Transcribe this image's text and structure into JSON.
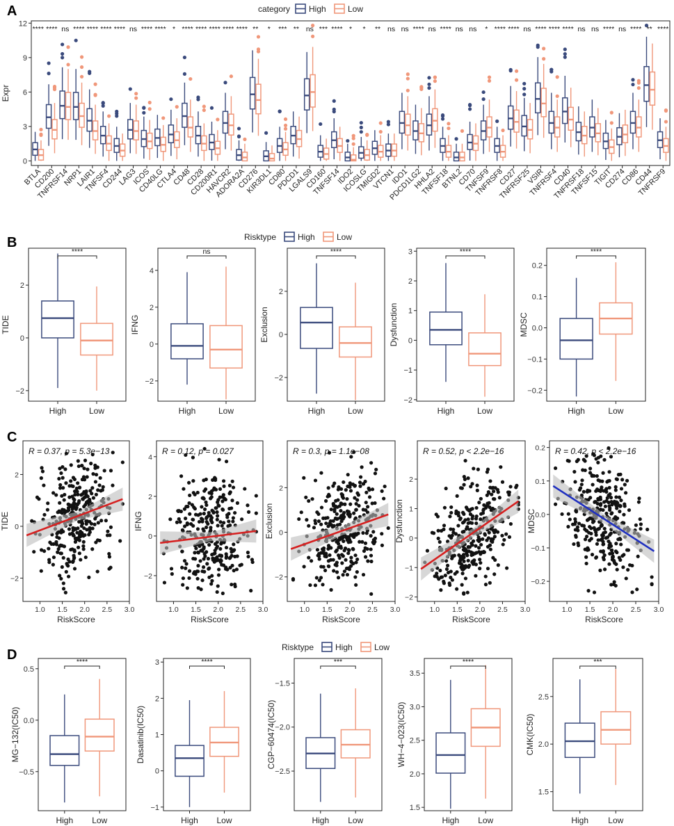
{
  "colors": {
    "high": "#3a4a7c",
    "low": "#f0977a",
    "regR": "#d62020",
    "regB": "#1f2fc0",
    "point": "#111111",
    "band": "#bdbdbd"
  },
  "panel_letters": [
    "A",
    "B",
    "C",
    "D"
  ],
  "panelA": {
    "legend_title": "category",
    "legend_high": "High",
    "legend_low": "Low",
    "ylabel": "Expr",
    "ylim": [
      -0.4,
      12.2
    ],
    "yticks": [
      0,
      3,
      6,
      9,
      12
    ],
    "genes": [
      "BTLA",
      "CD200",
      "TNFRSF14",
      "NRP1",
      "LAIR1",
      "TNFSF4",
      "CD244",
      "LAG3",
      "ICOS",
      "CD40LG",
      "CTLA4",
      "CD48",
      "CD28",
      "CD200R1",
      "HAVCR2",
      "ADORA2A",
      "CD276",
      "KIR3DL1",
      "CD80",
      "PDCD1",
      "LGALS9",
      "CD160",
      "TNFSF14",
      "IDO2",
      "ICOSLG",
      "TMIGD2",
      "VTCN1",
      "IDO1",
      "PDCD1LG2",
      "HHLA2",
      "TNFSF18",
      "BTNL2",
      "CD70",
      "TNFSF9",
      "TNFRSF8",
      "CD27",
      "TNFRSF25",
      "VSIR",
      "TNFRSF4",
      "CD40",
      "TNFRSF18",
      "TNFSF15",
      "TIGIT",
      "CD274",
      "CD86",
      "CD44",
      "TNFRSF9"
    ],
    "significance": [
      "****",
      "****",
      "ns",
      "****",
      "****",
      "****",
      "****",
      "ns",
      "****",
      "****",
      "*",
      "****",
      "****",
      "****",
      "****",
      "****",
      "**",
      "*",
      "***",
      "**",
      "ns",
      "***",
      "****",
      "*",
      "*",
      "**",
      "ns",
      "ns",
      "****",
      "ns",
      "****",
      "ns",
      "ns",
      "*",
      "****",
      "****",
      "ns",
      "****",
      "****",
      "****",
      "ns",
      "ns",
      "****",
      "ns",
      "****",
      "**",
      "****"
    ],
    "medians_high": [
      1.0,
      3.8,
      4.8,
      4.7,
      3.5,
      2.2,
      1.3,
      2.7,
      1.9,
      2.0,
      2.3,
      3.9,
      2.2,
      1.6,
      3.3,
      0.5,
      5.8,
      0.4,
      1.3,
      2.2,
      5.7,
      0.8,
      1.8,
      0.3,
      0.7,
      1.1,
      0.9,
      3.3,
      2.6,
      3.1,
      1.3,
      0.3,
      1.6,
      2.6,
      1.3,
      3.7,
      3.0,
      5.4,
      3.3,
      4.3,
      2.5,
      2.9,
      1.7,
      2.1,
      3.3,
      6.6,
      1.8
    ],
    "medians_low": [
      0.5,
      2.7,
      4.7,
      3.9,
      2.6,
      1.5,
      0.9,
      2.6,
      1.7,
      1.4,
      1.8,
      2.9,
      1.5,
      1.1,
      3.1,
      0.3,
      5.3,
      0.2,
      1.0,
      1.9,
      6.0,
      0.6,
      1.3,
      0.1,
      0.5,
      0.8,
      0.9,
      3.1,
      2.4,
      3.5,
      0.8,
      0.3,
      1.5,
      2.9,
      0.8,
      3.4,
      2.7,
      5.0,
      2.9,
      3.6,
      2.2,
      2.4,
      1.2,
      2.3,
      2.9,
      6.2,
      1.3
    ]
  },
  "panelB": {
    "legend_title": "Risktype",
    "legend_high": "High",
    "legend_low": "Low",
    "subplots": [
      {
        "ylabel": "TIDE",
        "sig": "****",
        "ylim": [
          -2.4,
          3.4
        ],
        "yticks": [
          -2,
          0,
          2
        ],
        "high": {
          "min": -1.9,
          "q1": 0.0,
          "med": 0.75,
          "q3": 1.4,
          "max": 3.2
        },
        "low": {
          "min": -2.0,
          "q1": -0.65,
          "med": -0.1,
          "q3": 0.55,
          "max": 1.95
        }
      },
      {
        "ylabel": "IFNG",
        "sig": "ns",
        "ylim": [
          -3.1,
          5.2
        ],
        "yticks": [
          -2,
          0,
          2,
          4
        ],
        "high": {
          "min": -2.2,
          "q1": -0.8,
          "med": -0.1,
          "q3": 1.1,
          "max": 3.9
        },
        "low": {
          "min": -3.0,
          "q1": -1.3,
          "med": -0.3,
          "q3": 1.0,
          "max": 4.2
        }
      },
      {
        "ylabel": "Exclusion",
        "sig": "****",
        "ylim": [
          -3.1,
          4.0
        ],
        "yticks": [
          -2,
          0,
          2
        ],
        "high": {
          "min": -2.75,
          "q1": -0.65,
          "med": 0.55,
          "q3": 1.25,
          "max": 3.3
        },
        "low": {
          "min": -3.05,
          "q1": -1.05,
          "med": -0.4,
          "q3": 0.35,
          "max": 2.4
        }
      },
      {
        "ylabel": "Dysfunction",
        "sig": "****",
        "ylim": [
          -2.05,
          3.1
        ],
        "yticks": [
          -2,
          -1,
          0,
          1,
          2,
          3
        ],
        "high": {
          "min": -1.4,
          "q1": -0.15,
          "med": 0.35,
          "q3": 0.95,
          "max": 2.6
        },
        "low": {
          "min": -1.9,
          "q1": -0.85,
          "med": -0.45,
          "q3": 0.25,
          "max": 1.55
        }
      },
      {
        "ylabel": "MDSC",
        "sig": "****",
        "ylim": [
          -0.235,
          0.255
        ],
        "yticks": [
          -0.2,
          -0.1,
          0.0,
          0.1,
          0.2
        ],
        "ytick_labels": [
          "-0.2",
          "-0.1",
          "0.0",
          "0.1",
          "0.2"
        ],
        "high": {
          "min": -0.22,
          "q1": -0.1,
          "med": -0.04,
          "q3": 0.03,
          "max": 0.16
        },
        "low": {
          "min": -0.17,
          "q1": -0.02,
          "med": 0.03,
          "q3": 0.08,
          "max": 0.21
        }
      }
    ]
  },
  "panelC": {
    "xlabel": "RiskScore",
    "xlim": [
      0.62,
      3.0
    ],
    "xticks": [
      "1.0",
      "1.5",
      "2.0",
      "2.5",
      "3.0"
    ],
    "subplots": [
      {
        "ylabel": "TIDE",
        "annot_r": "R = 0.37",
        "annot_p": "p = 5.3e−13",
        "ylim": [
          -2.9,
          3.3
        ],
        "yticks": [
          -2,
          0,
          2
        ],
        "line": [
          [
            0.7,
            -0.35
          ],
          [
            2.85,
            1.05
          ]
        ],
        "color": "regR"
      },
      {
        "ylabel": "IFNG",
        "annot_r": "R = 0.12",
        "annot_p": "p = 0.027",
        "ylim": [
          -3.3,
          4.8
        ],
        "yticks": [
          -2,
          0,
          2,
          4
        ],
        "line": [
          [
            0.7,
            -0.35
          ],
          [
            2.85,
            0.25
          ]
        ],
        "color": "regR"
      },
      {
        "ylabel": "Exclusion",
        "annot_r": "R = 0.3",
        "annot_p": "p = 1.1e−08",
        "ylim": [
          -3.1,
          4.1
        ],
        "yticks": [
          -2,
          0,
          2
        ],
        "line": [
          [
            0.7,
            -0.75
          ],
          [
            2.85,
            0.8
          ]
        ],
        "color": "regR"
      },
      {
        "ylabel": "Dysfunction",
        "annot_r": "R = 0.52",
        "annot_p": "p < 2.2e−16",
        "ylim": [
          -2.15,
          3.3
        ],
        "yticks": [
          -2,
          -1,
          0,
          1,
          2
        ],
        "line": [
          [
            0.7,
            -1.05
          ],
          [
            2.85,
            1.25
          ]
        ],
        "color": "regR"
      },
      {
        "ylabel": "MDSC",
        "annot_r": "R = 0.42",
        "annot_p": "p < 2.2e−16",
        "ylim": [
          -0.26,
          0.22
        ],
        "yticks": [
          -0.2,
          -0.1,
          0.0,
          0.1,
          0.2
        ],
        "ytick_labels": [
          "-0.2",
          "-0.1",
          "0.0",
          "0.1",
          "0.2"
        ],
        "line": [
          [
            0.7,
            0.085
          ],
          [
            2.9,
            -0.11
          ]
        ],
        "color": "regB"
      }
    ]
  },
  "panelD": {
    "legend_title": "Risktype",
    "legend_high": "High",
    "legend_low": "Low",
    "subplots": [
      {
        "ylabel": "MG−132(IC50)",
        "sig": "****",
        "ylim": [
          -0.88,
          0.6
        ],
        "yticks": [
          -0.5,
          0.0,
          0.5
        ],
        "ytick_labels": [
          "-0.5",
          "0.0",
          "0.5"
        ],
        "high": {
          "min": -0.8,
          "q1": -0.44,
          "med": -0.33,
          "q3": -0.15,
          "max": 0.25
        },
        "low": {
          "min": -0.74,
          "q1": -0.3,
          "med": -0.16,
          "q3": 0.01,
          "max": 0.4
        }
      },
      {
        "ylabel": "Dasatinib(IC50)",
        "sig": "****",
        "ylim": [
          -1.1,
          3.1
        ],
        "yticks": [
          -1,
          0,
          1,
          2,
          3
        ],
        "high": {
          "min": -1.0,
          "q1": -0.15,
          "med": 0.35,
          "q3": 0.7,
          "max": 1.95
        },
        "low": {
          "min": -0.6,
          "q1": 0.4,
          "med": 0.78,
          "q3": 1.2,
          "max": 2.2
        }
      },
      {
        "ylabel": "CGP−60474(IC50)",
        "sig": "***",
        "ylim": [
          -2.95,
          -1.22
        ],
        "yticks": [
          -2.5,
          -2.0,
          -1.5
        ],
        "ytick_labels": [
          "-2.5",
          "-2.0",
          "-1.5"
        ],
        "high": {
          "min": -2.85,
          "q1": -2.47,
          "med": -2.3,
          "q3": -2.12,
          "max": -1.62
        },
        "low": {
          "min": -2.8,
          "q1": -2.35,
          "med": -2.2,
          "q3": -2.03,
          "max": -1.56
        }
      },
      {
        "ylabel": "WH−4−023(IC50)",
        "sig": "****",
        "ylim": [
          1.45,
          3.72
        ],
        "yticks": [
          1.5,
          2.0,
          2.5,
          3.0,
          3.5
        ],
        "ytick_labels": [
          "1.5",
          "2.0",
          "2.5",
          "3.0",
          "3.5"
        ],
        "high": {
          "min": 1.48,
          "q1": 2.01,
          "med": 2.28,
          "q3": 2.61,
          "max": 3.4
        },
        "low": {
          "min": 1.63,
          "q1": 2.41,
          "med": 2.69,
          "q3": 2.97,
          "max": 3.62
        }
      },
      {
        "ylabel": "CMK(IC50)",
        "sig": "***",
        "ylim": [
          1.3,
          2.9
        ],
        "yticks": [
          1.5,
          2.0,
          2.5
        ],
        "ytick_labels": [
          "1.5",
          "2.0",
          "2.5"
        ],
        "high": {
          "min": 1.48,
          "q1": 1.86,
          "med": 2.03,
          "q3": 2.22,
          "max": 2.68
        },
        "low": {
          "min": 1.57,
          "q1": 2.0,
          "med": 2.15,
          "q3": 2.34,
          "max": 2.79
        }
      }
    ]
  }
}
